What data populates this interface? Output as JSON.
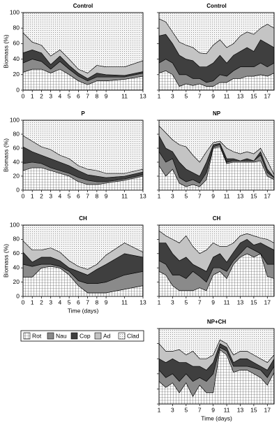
{
  "legend": [
    {
      "name": "Rot",
      "color": "#ffffff",
      "pattern": "grid"
    },
    {
      "name": "Nau",
      "color": "#8a8a8a"
    },
    {
      "name": "Cop",
      "color": "#3f3f3f"
    },
    {
      "name": "Ad",
      "color": "#c4c4c4"
    },
    {
      "name": "Clad",
      "color": "#f2f2f2",
      "pattern": "dots"
    }
  ],
  "chart_data": [
    {
      "type": "stacked-area",
      "title": "Control",
      "ylabel": "Biomass (%)",
      "x": [
        0,
        1,
        2,
        3,
        4,
        5,
        6,
        7,
        8,
        9,
        11,
        13
      ],
      "xlim": [
        0,
        13
      ],
      "xticks": [
        0,
        1,
        2,
        3,
        4,
        5,
        6,
        7,
        8,
        9,
        11,
        13
      ],
      "ylim": [
        0,
        100
      ],
      "yticks": [
        0,
        20,
        40,
        60,
        80,
        100
      ],
      "series": [
        {
          "values": [
            23,
            27,
            27,
            22,
            27,
            20,
            12,
            7,
            12,
            12,
            14,
            18
          ]
        },
        {
          "values": [
            12,
            13,
            10,
            5,
            10,
            7,
            6,
            5,
            5,
            5,
            3,
            4
          ]
        },
        {
          "values": [
            13,
            12,
            11,
            6,
            7,
            5,
            4,
            3,
            5,
            3,
            2,
            2
          ]
        },
        {
          "values": [
            26,
            10,
            10,
            11,
            8,
            8,
            5,
            7,
            10,
            10,
            11,
            14
          ]
        },
        {
          "values": [
            26,
            38,
            42,
            56,
            48,
            60,
            73,
            78,
            68,
            70,
            70,
            62
          ]
        }
      ]
    },
    {
      "type": "stacked-area",
      "title": "Control",
      "ytick_labels": false,
      "x": [
        1,
        2,
        3,
        4,
        5,
        6,
        7,
        8,
        9,
        10,
        11,
        12,
        13,
        14,
        15,
        16,
        17,
        18
      ],
      "xlim": [
        1,
        18
      ],
      "xticks": [
        1,
        3,
        5,
        7,
        9,
        11,
        13,
        15,
        17
      ],
      "ylim": [
        0,
        100
      ],
      "yticks": [
        0,
        20,
        40,
        60,
        80,
        100
      ],
      "series": [
        {
          "values": [
            22,
            25,
            20,
            5,
            8,
            6,
            8,
            5,
            5,
            10,
            10,
            15,
            15,
            18,
            18,
            20,
            18,
            22
          ]
        },
        {
          "values": [
            13,
            15,
            15,
            15,
            12,
            9,
            7,
            5,
            7,
            10,
            8,
            10,
            15,
            12,
            12,
            15,
            12,
            13
          ]
        },
        {
          "values": [
            35,
            32,
            25,
            25,
            20,
            23,
            15,
            20,
            23,
            25,
            17,
            20,
            20,
            25,
            20,
            30,
            30,
            20
          ]
        },
        {
          "values": [
            22,
            16,
            15,
            17,
            18,
            17,
            18,
            17,
            23,
            20,
            20,
            15,
            20,
            20,
            22,
            15,
            25,
            25
          ]
        },
        {
          "values": [
            8,
            12,
            25,
            38,
            42,
            45,
            52,
            53,
            42,
            35,
            45,
            40,
            30,
            25,
            28,
            20,
            15,
            20
          ]
        }
      ]
    },
    {
      "type": "stacked-area",
      "title": "P",
      "ylabel": "Biomass (%)",
      "x": [
        0,
        1,
        2,
        3,
        4,
        5,
        6,
        7,
        8,
        9,
        11,
        13
      ],
      "xlim": [
        0,
        13
      ],
      "xticks": [
        0,
        1,
        2,
        3,
        4,
        5,
        6,
        7,
        8,
        9,
        11,
        13
      ],
      "ylim": [
        0,
        100
      ],
      "yticks": [
        0,
        20,
        40,
        60,
        80,
        100
      ],
      "series": [
        {
          "values": [
            28,
            32,
            32,
            28,
            24,
            20,
            12,
            8,
            8,
            10,
            14,
            20
          ]
        },
        {
          "values": [
            10,
            8,
            6,
            4,
            4,
            4,
            6,
            6,
            4,
            2,
            2,
            2
          ]
        },
        {
          "values": [
            24,
            15,
            12,
            13,
            12,
            11,
            10,
            8,
            8,
            6,
            4,
            4
          ]
        },
        {
          "values": [
            16,
            15,
            12,
            13,
            10,
            10,
            7,
            8,
            8,
            6,
            4,
            4
          ]
        },
        {
          "values": [
            22,
            30,
            38,
            42,
            50,
            55,
            65,
            70,
            72,
            76,
            76,
            70
          ]
        }
      ]
    },
    {
      "type": "stacked-area",
      "title": "NP",
      "ytick_labels": false,
      "x": [
        1,
        2,
        3,
        4,
        5,
        6,
        7,
        8,
        9,
        10,
        11,
        12,
        13,
        14,
        15,
        16,
        17,
        18
      ],
      "xlim": [
        1,
        18
      ],
      "xticks": [
        1,
        3,
        5,
        7,
        9,
        11,
        13,
        15,
        17
      ],
      "ylim": [
        0,
        100
      ],
      "yticks": [
        0,
        20,
        40,
        60,
        80,
        100
      ],
      "series": [
        {
          "values": [
            35,
            20,
            30,
            10,
            5,
            8,
            5,
            15,
            60,
            62,
            38,
            40,
            40,
            40,
            40,
            42,
            20,
            15
          ]
        },
        {
          "values": [
            20,
            20,
            15,
            8,
            7,
            7,
            5,
            10,
            2,
            3,
            2,
            2,
            2,
            2,
            2,
            8,
            5,
            3
          ]
        },
        {
          "values": [
            23,
            20,
            10,
            22,
            18,
            10,
            10,
            15,
            3,
            2,
            5,
            3,
            0,
            3,
            0,
            5,
            5,
            0
          ]
        },
        {
          "values": [
            14,
            22,
            17,
            25,
            32,
            25,
            20,
            15,
            3,
            3,
            15,
            10,
            10,
            10,
            10,
            5,
            12,
            4
          ]
        },
        {
          "values": [
            8,
            18,
            28,
            35,
            38,
            50,
            60,
            45,
            32,
            30,
            40,
            45,
            48,
            45,
            48,
            40,
            58,
            78
          ]
        }
      ]
    },
    {
      "type": "stacked-area",
      "title": "CH",
      "ylabel": "Biomass (%)",
      "xlabel": "Time (days)",
      "x": [
        0,
        1,
        2,
        3,
        4,
        5,
        6,
        7,
        8,
        9,
        11,
        13
      ],
      "xlim": [
        0,
        13
      ],
      "xticks": [
        0,
        1,
        2,
        3,
        4,
        5,
        6,
        7,
        8,
        9,
        11,
        13
      ],
      "ylim": [
        0,
        100
      ],
      "yticks": [
        0,
        20,
        40,
        60,
        80,
        100
      ],
      "series": [
        {
          "values": [
            27,
            27,
            40,
            42,
            40,
            30,
            15,
            5,
            5,
            5,
            10,
            15
          ]
        },
        {
          "values": [
            18,
            15,
            5,
            3,
            2,
            5,
            7,
            13,
            13,
            15,
            20,
            20
          ]
        },
        {
          "values": [
            17,
            6,
            10,
            10,
            8,
            5,
            13,
            12,
            20,
            25,
            30,
            20
          ]
        },
        {
          "values": [
            16,
            17,
            10,
            13,
            12,
            10,
            7,
            8,
            7,
            13,
            15,
            7
          ]
        },
        {
          "values": [
            22,
            35,
            35,
            32,
            38,
            50,
            58,
            62,
            55,
            42,
            25,
            38
          ]
        }
      ]
    },
    {
      "type": "stacked-area",
      "title": "CH",
      "ytick_labels": false,
      "x": [
        1,
        2,
        3,
        4,
        5,
        6,
        7,
        8,
        9,
        10,
        11,
        12,
        13,
        14,
        15,
        16,
        17,
        18
      ],
      "xlim": [
        1,
        18
      ],
      "xticks": [
        1,
        3,
        5,
        7,
        9,
        11,
        13,
        15,
        17
      ],
      "ylim": [
        0,
        100
      ],
      "yticks": [
        0,
        20,
        40,
        60,
        80,
        100
      ],
      "series": [
        {
          "values": [
            35,
            30,
            15,
            8,
            8,
            8,
            12,
            8,
            30,
            35,
            25,
            45,
            55,
            60,
            55,
            60,
            28,
            25
          ]
        },
        {
          "values": [
            15,
            15,
            15,
            22,
            17,
            27,
            16,
            12,
            10,
            5,
            10,
            5,
            5,
            10,
            10,
            0,
            17,
            20
          ]
        },
        {
          "values": [
            25,
            30,
            30,
            20,
            30,
            10,
            12,
            15,
            15,
            20,
            13,
            12,
            15,
            10,
            7,
            15,
            25,
            20
          ]
        },
        {
          "values": [
            17,
            10,
            20,
            25,
            30,
            25,
            20,
            30,
            20,
            10,
            22,
            13,
            10,
            8,
            13,
            7,
            10,
            10
          ]
        },
        {
          "values": [
            8,
            15,
            20,
            25,
            15,
            30,
            40,
            35,
            25,
            30,
            30,
            25,
            15,
            12,
            15,
            18,
            20,
            25
          ]
        }
      ]
    },
    {
      "type": "stacked-area",
      "title": "NP+CH",
      "ytick_labels": false,
      "xlabel": "Time (days)",
      "x": [
        1,
        2,
        3,
        4,
        5,
        6,
        7,
        8,
        9,
        10,
        11,
        12,
        13,
        14,
        15,
        16,
        17,
        18
      ],
      "xlim": [
        1,
        18
      ],
      "xticks": [
        1,
        3,
        5,
        7,
        9,
        11,
        13,
        15,
        17
      ],
      "ylim": [
        0,
        100
      ],
      "yticks": [
        0,
        20,
        40,
        60,
        80,
        100
      ],
      "series": [
        {
          "values": [
            30,
            22,
            28,
            15,
            28,
            10,
            25,
            15,
            15,
            72,
            65,
            42,
            45,
            45,
            40,
            35,
            25,
            42
          ]
        },
        {
          "values": [
            15,
            13,
            12,
            15,
            12,
            20,
            10,
            15,
            25,
            3,
            5,
            8,
            5,
            5,
            8,
            10,
            10,
            8
          ]
        },
        {
          "values": [
            15,
            20,
            20,
            25,
            15,
            20,
            15,
            15,
            15,
            5,
            5,
            5,
            10,
            10,
            7,
            5,
            10,
            10
          ]
        },
        {
          "values": [
            20,
            15,
            10,
            17,
            10,
            20,
            10,
            15,
            10,
            5,
            5,
            10,
            10,
            10,
            10,
            10,
            10,
            5
          ]
        },
        {
          "values": [
            20,
            30,
            30,
            28,
            35,
            30,
            40,
            40,
            35,
            15,
            20,
            35,
            30,
            30,
            35,
            40,
            45,
            35
          ]
        }
      ]
    }
  ]
}
